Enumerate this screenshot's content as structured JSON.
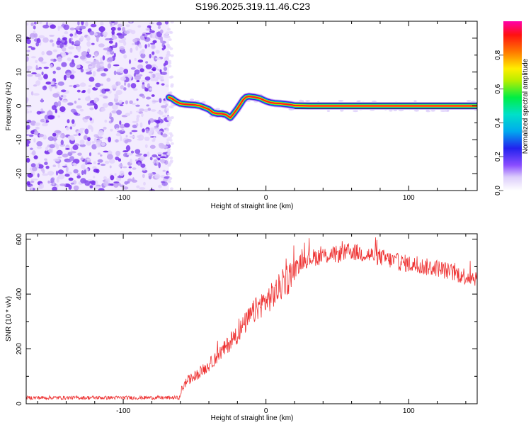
{
  "title": "S196.2025.319.11.46.C23",
  "chart_data": [
    {
      "type": "heatmap",
      "panel": "top",
      "xlabel": "Height of straight line (km)",
      "ylabel": "Frequency (Hz)",
      "xlim": [
        -168,
        148
      ],
      "ylim": [
        -25,
        25
      ],
      "xticks": [
        -100,
        0,
        100
      ],
      "yticks": [
        -20,
        -10,
        0,
        10,
        20
      ],
      "noise_region_x": [
        -168,
        -68
      ],
      "trace": {
        "x": [
          -68,
          -66,
          -63,
          -60,
          -57,
          -54,
          -50,
          -46,
          -43,
          -40,
          -37,
          -34,
          -31,
          -28,
          -25,
          -23,
          -20,
          -18,
          -16,
          -14,
          -12,
          -10,
          -8,
          -6,
          -4,
          -2,
          0,
          3,
          6,
          10,
          14,
          18,
          20,
          30,
          60,
          100,
          148
        ],
        "y": [
          2.5,
          2.2,
          1.3,
          0.7,
          0.5,
          0.4,
          0.3,
          0.0,
          -0.5,
          -1.0,
          -2.0,
          -2.3,
          -2.3,
          -2.6,
          -3.5,
          -2.5,
          -0.8,
          0.5,
          1.8,
          2.6,
          2.8,
          2.7,
          2.6,
          2.4,
          2.2,
          1.8,
          1.4,
          1.0,
          0.8,
          0.7,
          0.5,
          0.3,
          0.1,
          0.0,
          0.0,
          0.0,
          0.0
        ]
      },
      "colorbar": {
        "label": "Normalized spectral amplitude",
        "ticks": [
          "0.0",
          "0.2",
          "0.4",
          "0.6",
          "0.8"
        ],
        "tick_values": [
          0.0,
          0.2,
          0.4,
          0.6,
          0.8
        ],
        "range": [
          0.0,
          1.0
        ]
      }
    },
    {
      "type": "line",
      "panel": "bottom",
      "xlabel": "Height of straight line (km)",
      "ylabel": "SNR (10 * v/v)",
      "xlim": [
        -168,
        148
      ],
      "ylim": [
        0,
        620
      ],
      "xticks": [
        -100,
        0,
        100
      ],
      "yticks": [
        0,
        200,
        400,
        600
      ],
      "color": "#ee3333",
      "series": [
        {
          "name": "SNR",
          "x": [
            -168,
            -120,
            -80,
            -60,
            -59,
            -55,
            -50,
            -45,
            -40,
            -35,
            -30,
            -25,
            -20,
            -15,
            -10,
            -5,
            0,
            5,
            10,
            15,
            20,
            25,
            30,
            40,
            50,
            60,
            70,
            80,
            90,
            100,
            110,
            120,
            130,
            140,
            148
          ],
          "y": [
            22,
            22,
            22,
            22,
            55,
            85,
            100,
            120,
            140,
            170,
            195,
            225,
            255,
            290,
            325,
            355,
            375,
            395,
            425,
            455,
            490,
            520,
            530,
            540,
            545,
            555,
            545,
            535,
            520,
            510,
            500,
            495,
            480,
            465,
            460
          ]
        }
      ]
    }
  ]
}
